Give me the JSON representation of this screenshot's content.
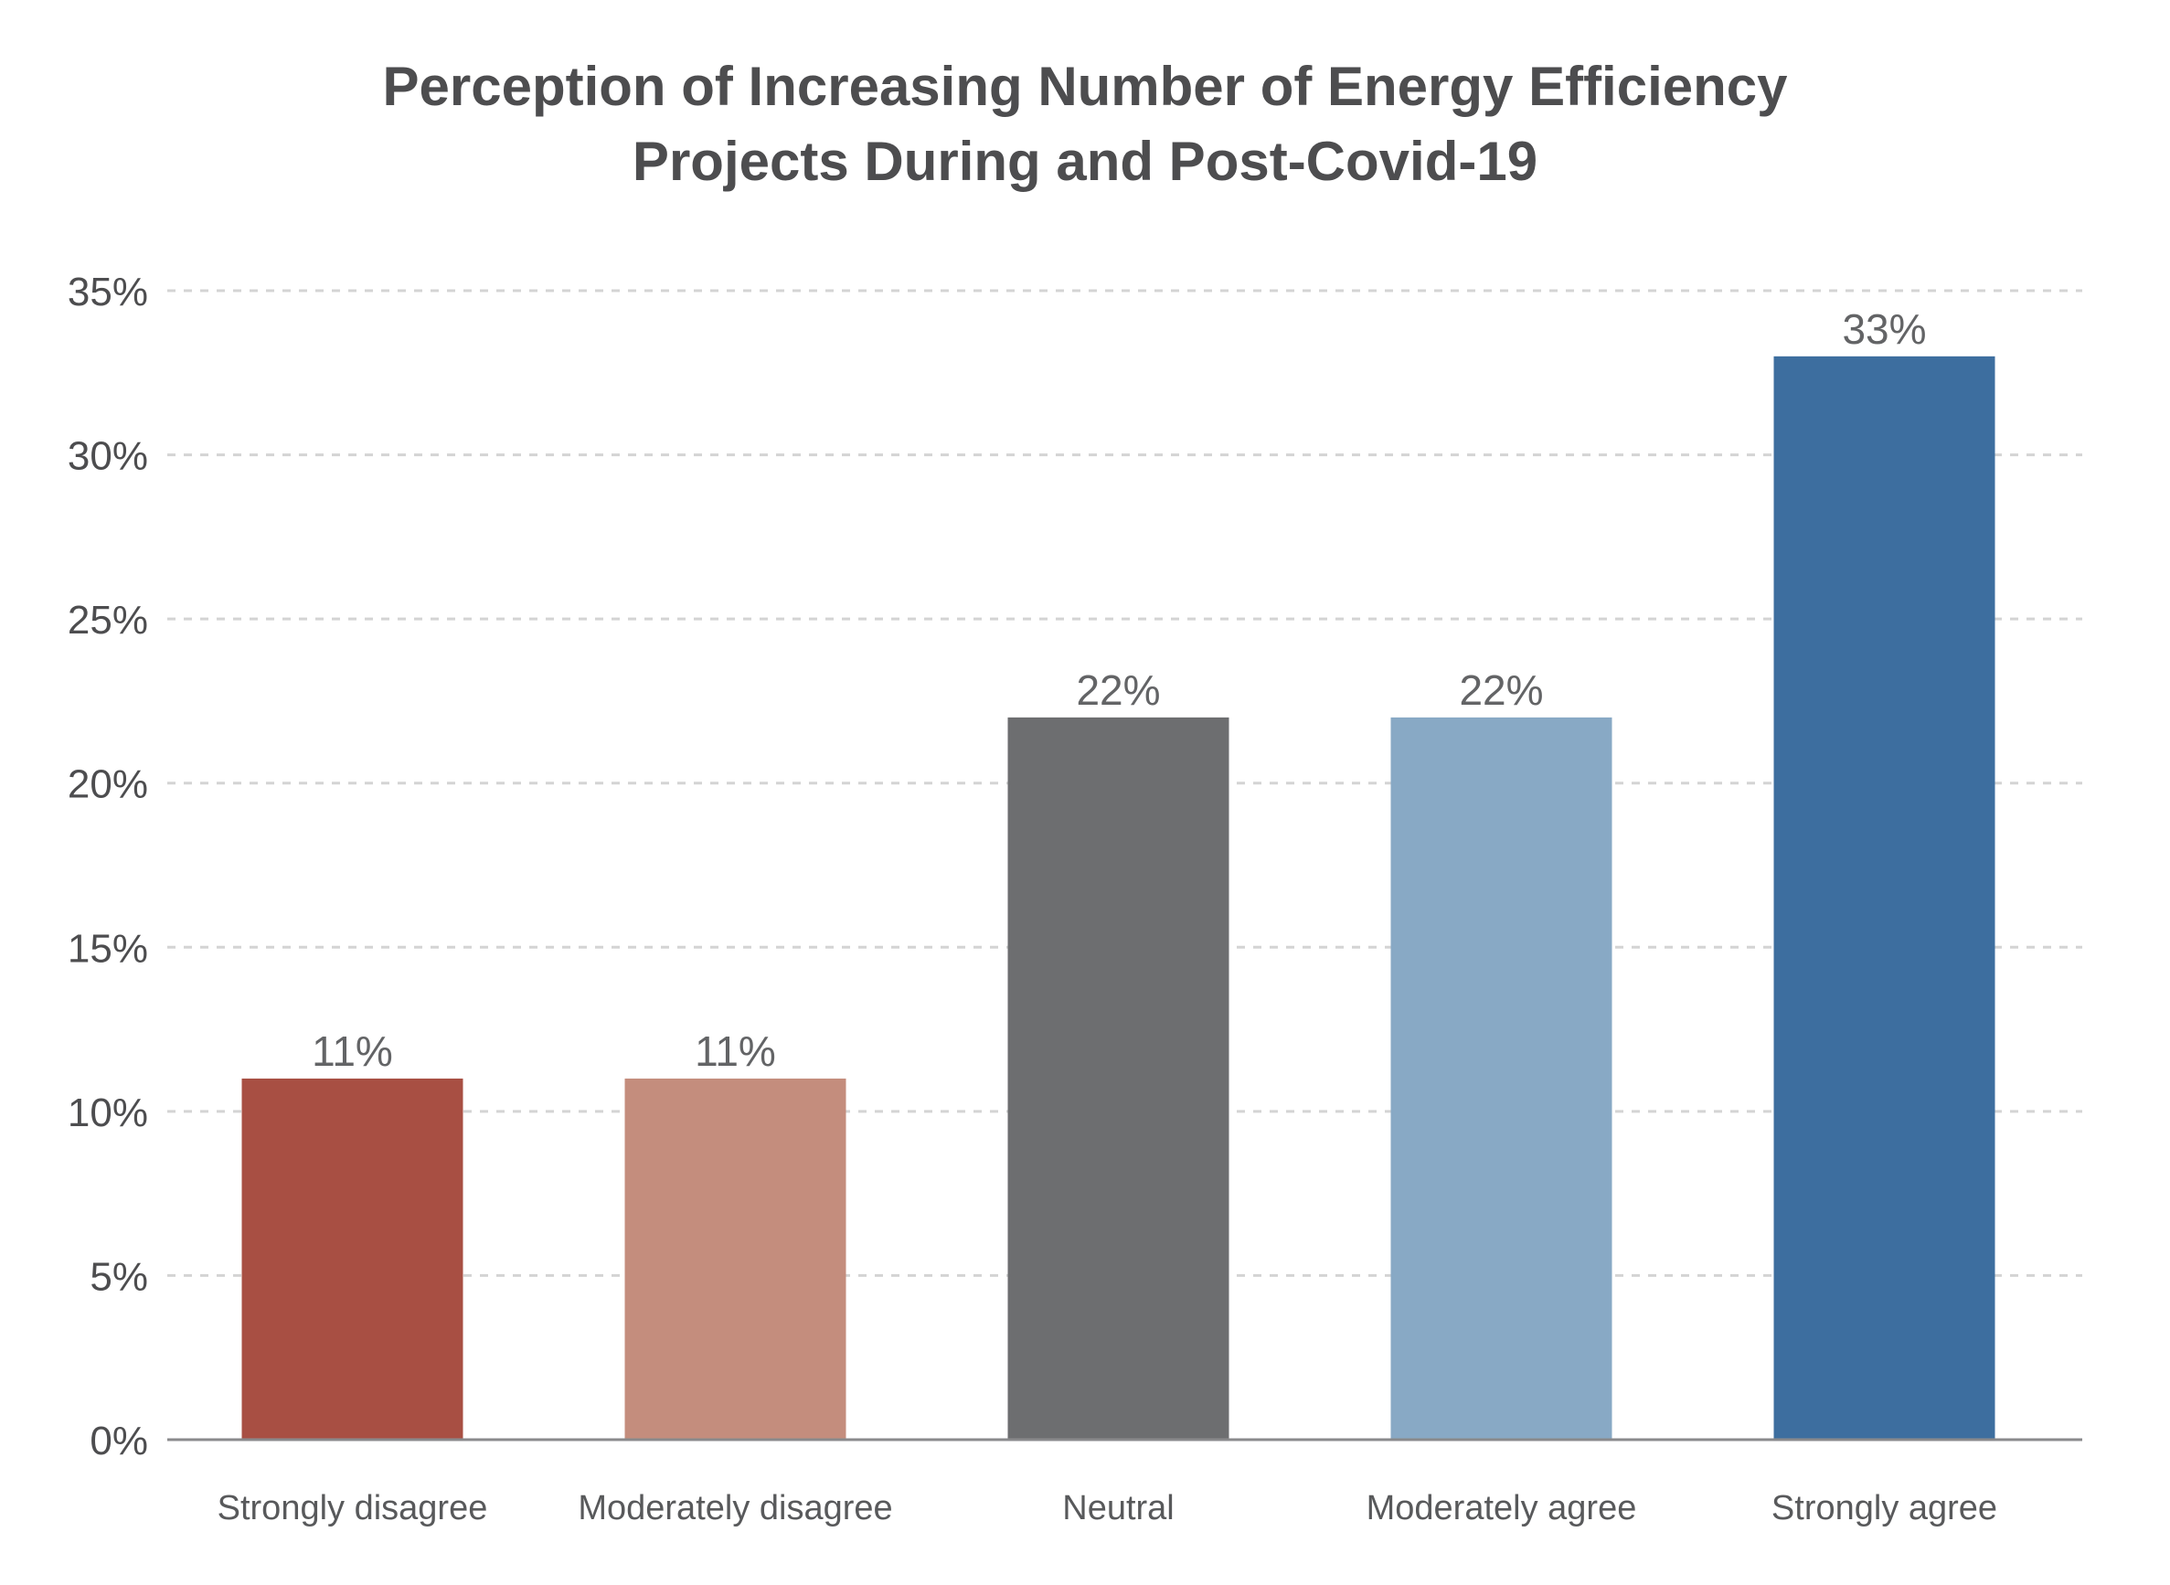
{
  "chart_data": {
    "type": "bar",
    "title_lines": [
      "Perception of Increasing Number of Energy Efficiency",
      "Projects During and Post-Covid-19"
    ],
    "categories": [
      "Strongly disagree",
      "Moderately disagree",
      "Neutral",
      "Moderately agree",
      "Strongly agree"
    ],
    "values": [
      11,
      11,
      22,
      22,
      33
    ],
    "value_labels": [
      "11%",
      "11%",
      "22%",
      "22%",
      "33%"
    ],
    "bar_colors": [
      "#a84f43",
      "#c48d7d",
      "#6d6e70",
      "#88a9c5",
      "#3d6e9f"
    ],
    "y_ticks": [
      0,
      5,
      10,
      15,
      20,
      25,
      30,
      35
    ],
    "y_tick_labels": [
      "0%",
      "5%",
      "10%",
      "15%",
      "20%",
      "25%",
      "30%",
      "35%"
    ],
    "ylim": [
      0,
      35
    ],
    "xlabel": "",
    "ylabel": "",
    "grid": true,
    "grid_style": "dashed",
    "legend": "none"
  }
}
